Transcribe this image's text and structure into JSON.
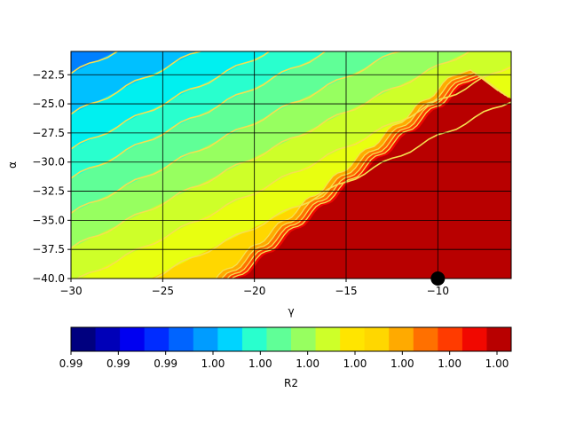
{
  "chart_data": {
    "type": "heatmap",
    "subtype": "filled-contour",
    "xlabel": "γ",
    "ylabel": "α",
    "xlim": [
      -30,
      -6
    ],
    "ylim": [
      -40,
      -20.5
    ],
    "x_ticks": [
      -30,
      -25,
      -20,
      -15,
      -10
    ],
    "y_ticks": [
      -40.0,
      -37.5,
      -35.0,
      -32.5,
      -30.0,
      -27.5,
      -25.0,
      -22.5
    ],
    "x_tick_labels": [
      "−30",
      "−25",
      "−20",
      "−15",
      "−10"
    ],
    "y_tick_labels": [
      "−40.0",
      "−37.5",
      "−35.0",
      "−32.5",
      "−30.0",
      "−27.5",
      "−25.0",
      "−22.5"
    ],
    "grid": true,
    "grid_color": "#000000",
    "colormap": "jet",
    "contour_line_color": "#f5e050",
    "colorbar": {
      "label": "R2",
      "orientation": "horizontal",
      "placement": "bottom",
      "tick_labels": [
        "0.99",
        "0.99",
        "0.99",
        "1.00",
        "1.00",
        "1.00",
        "1.00",
        "1.00",
        "1.00",
        "1.00"
      ],
      "colors": [
        "#00007f",
        "#0000b8",
        "#0000f1",
        "#002cff",
        "#0064ff",
        "#009cff",
        "#00d4ff",
        "#29ffce",
        "#60ff97",
        "#97ff60",
        "#ceff29",
        "#ffe500",
        "#ffd700",
        "#ffaa00",
        "#ff7000",
        "#ff3b00",
        "#f10800",
        "#b80000"
      ]
    },
    "marker": {
      "x": -10,
      "y": -40,
      "color": "#000000"
    },
    "description_regions": {
      "max_region": "γ ≳ −20 and α ≲ linear boundary from (−20,−40) to (−8,−23); value ≈ 1.00 (dark red)",
      "gradient_direction": "R2 increases from upper-left (blue) to lower-right (dark red)"
    }
  }
}
